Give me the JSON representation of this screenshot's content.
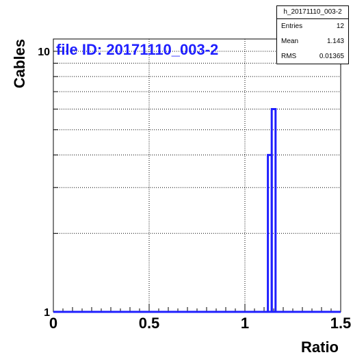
{
  "annotation": "file ID: 20171110_003-2",
  "stats": {
    "title": "h_20171110_003-2",
    "rows": [
      {
        "label": "Entries",
        "value": "12"
      },
      {
        "label": "Mean",
        "value": "1.143"
      },
      {
        "label": "RMS",
        "value": "0.01365"
      }
    ]
  },
  "chart_data": {
    "type": "bar",
    "title": "",
    "xlabel": "Ratio",
    "ylabel": "Cables",
    "xlim": [
      0,
      1.5
    ],
    "ylim": [
      1,
      10
    ],
    "yscale": "log",
    "grid": true,
    "x_ticks": [
      "0",
      "0.5",
      "1",
      "1.5"
    ],
    "y_ticks": [
      "1",
      "10"
    ],
    "bins": [
      {
        "x0": 1.12,
        "x1": 1.14,
        "count": 4
      },
      {
        "x0": 1.14,
        "x1": 1.16,
        "count": 6
      }
    ],
    "colors": {
      "bars": "#1f1fff",
      "annotation": "#1f1fff"
    }
  }
}
